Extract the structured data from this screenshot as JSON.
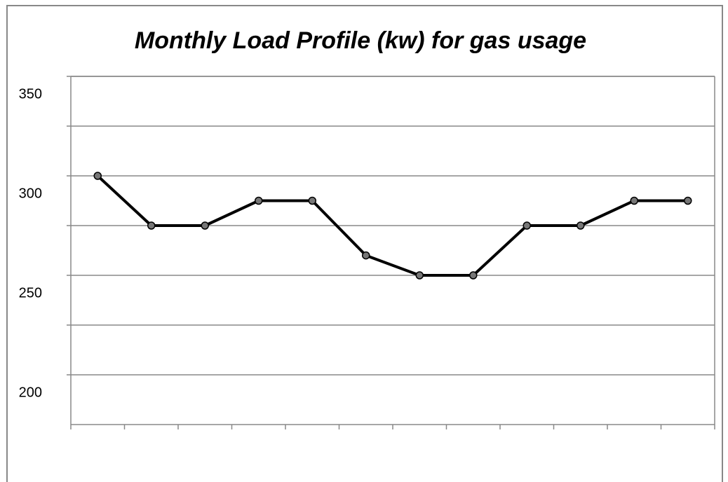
{
  "chart_data": {
    "type": "line",
    "title": "Monthly Load Profile (kw) for gas usage",
    "categories": [
      null,
      null,
      null,
      null,
      null,
      null,
      null,
      null,
      null,
      null,
      null,
      null
    ],
    "series": [
      {
        "name": null,
        "color": "#000000",
        "values": [
          300,
          275,
          275,
          287.5,
          287.5,
          260,
          250,
          250,
          275,
          275,
          287.5,
          287.5
        ]
      }
    ],
    "ylim": [
      175,
      350
    ],
    "yticks": [
      150,
      200,
      250,
      300,
      350
    ],
    "minor_yticks": [
      225,
      275,
      325
    ],
    "grid": true
  }
}
